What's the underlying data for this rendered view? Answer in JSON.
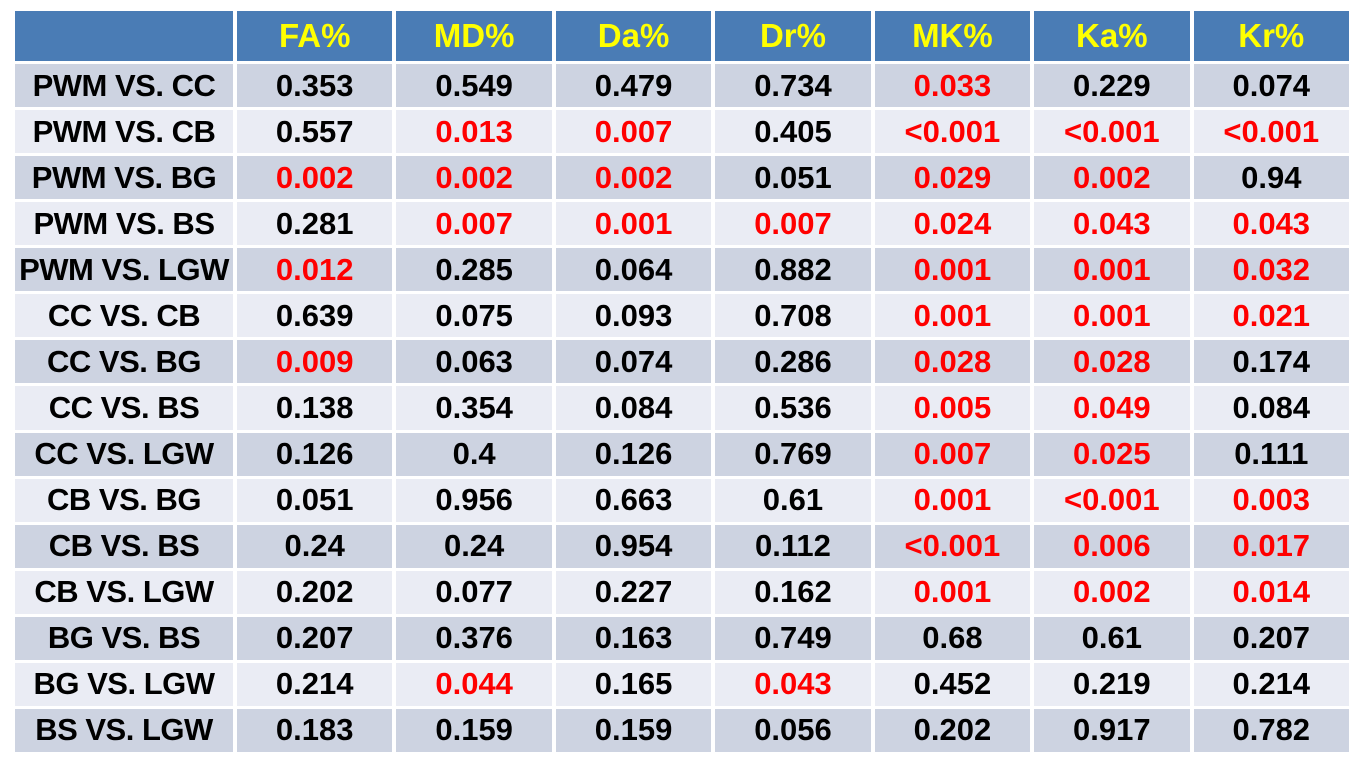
{
  "chart_data": {
    "type": "table",
    "columns": [
      "",
      "FA%",
      "MD%",
      "Da%",
      "Dr%",
      "MK%",
      "Ka%",
      "Kr%"
    ],
    "rows": [
      {
        "label": "PWM VS. CC",
        "values": [
          "0.353",
          "0.549",
          "0.479",
          "0.734",
          "0.033",
          "0.229",
          "0.074"
        ],
        "significant": [
          false,
          false,
          false,
          false,
          true,
          false,
          false
        ]
      },
      {
        "label": "PWM VS. CB",
        "values": [
          "0.557",
          "0.013",
          "0.007",
          "0.405",
          "<0.001",
          "<0.001",
          "<0.001"
        ],
        "significant": [
          false,
          true,
          true,
          false,
          true,
          true,
          true
        ]
      },
      {
        "label": "PWM VS. BG",
        "values": [
          "0.002",
          "0.002",
          "0.002",
          "0.051",
          "0.029",
          "0.002",
          "0.94"
        ],
        "significant": [
          true,
          true,
          true,
          false,
          true,
          true,
          false
        ]
      },
      {
        "label": "PWM VS. BS",
        "values": [
          "0.281",
          "0.007",
          "0.001",
          "0.007",
          "0.024",
          "0.043",
          "0.043"
        ],
        "significant": [
          false,
          true,
          true,
          true,
          true,
          true,
          true
        ]
      },
      {
        "label": "PWM VS. LGW",
        "values": [
          "0.012",
          "0.285",
          "0.064",
          "0.882",
          "0.001",
          "0.001",
          "0.032"
        ],
        "significant": [
          true,
          false,
          false,
          false,
          true,
          true,
          true
        ]
      },
      {
        "label": "CC VS. CB",
        "values": [
          "0.639",
          "0.075",
          "0.093",
          "0.708",
          "0.001",
          "0.001",
          "0.021"
        ],
        "significant": [
          false,
          false,
          false,
          false,
          true,
          true,
          true
        ]
      },
      {
        "label": "CC VS. BG",
        "values": [
          "0.009",
          "0.063",
          "0.074",
          "0.286",
          "0.028",
          "0.028",
          "0.174"
        ],
        "significant": [
          true,
          false,
          false,
          false,
          true,
          true,
          false
        ]
      },
      {
        "label": "CC VS. BS",
        "values": [
          "0.138",
          "0.354",
          "0.084",
          "0.536",
          "0.005",
          "0.049",
          "0.084"
        ],
        "significant": [
          false,
          false,
          false,
          false,
          true,
          true,
          false
        ]
      },
      {
        "label": "CC VS. LGW",
        "values": [
          "0.126",
          "0.4",
          "0.126",
          "0.769",
          "0.007",
          "0.025",
          "0.111"
        ],
        "significant": [
          false,
          false,
          false,
          false,
          true,
          true,
          false
        ]
      },
      {
        "label": "CB VS. BG",
        "values": [
          "0.051",
          "0.956",
          "0.663",
          "0.61",
          "0.001",
          "<0.001",
          "0.003"
        ],
        "significant": [
          false,
          false,
          false,
          false,
          true,
          true,
          true
        ]
      },
      {
        "label": "CB VS. BS",
        "values": [
          "0.24",
          "0.24",
          "0.954",
          "0.112",
          "<0.001",
          "0.006",
          "0.017"
        ],
        "significant": [
          false,
          false,
          false,
          false,
          true,
          true,
          true
        ]
      },
      {
        "label": "CB VS. LGW",
        "values": [
          "0.202",
          "0.077",
          "0.227",
          "0.162",
          "0.001",
          "0.002",
          "0.014"
        ],
        "significant": [
          false,
          false,
          false,
          false,
          true,
          true,
          true
        ]
      },
      {
        "label": "BG VS. BS",
        "values": [
          "0.207",
          "0.376",
          "0.163",
          "0.749",
          "0.68",
          "0.61",
          "0.207"
        ],
        "significant": [
          false,
          false,
          false,
          false,
          false,
          false,
          false
        ]
      },
      {
        "label": "BG VS. LGW",
        "values": [
          "0.214",
          "0.044",
          "0.165",
          "0.043",
          "0.452",
          "0.219",
          "0.214"
        ],
        "significant": [
          false,
          true,
          false,
          true,
          false,
          false,
          false
        ]
      },
      {
        "label": "BS VS. LGW",
        "values": [
          "0.183",
          "0.159",
          "0.159",
          "0.056",
          "0.202",
          "0.917",
          "0.782"
        ],
        "significant": [
          false,
          false,
          false,
          false,
          false,
          false,
          false
        ]
      }
    ],
    "legend_position": "none",
    "grid": "white cell separators",
    "title": ""
  },
  "colors": {
    "header_bg": "#4a7cb5",
    "header_text": "#ffff00",
    "row_odd_bg": "#cdd3e1",
    "row_even_bg": "#eaecf4",
    "text_color": "#000000",
    "sig_color": "#ff0000",
    "page_bg": "#ffffff"
  }
}
